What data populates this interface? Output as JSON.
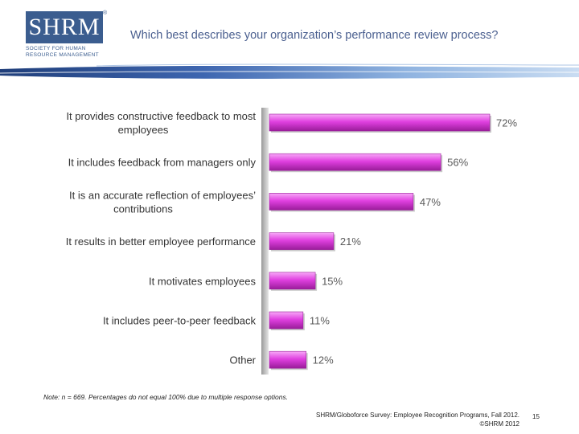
{
  "header": {
    "logo_word": "SHRM",
    "logo_registered": "®",
    "logo_sub_line1": "SOCIETY FOR HUMAN",
    "logo_sub_line2": "RESOURCE MANAGEMENT",
    "title": "Which best describes your organization’s performance review process?"
  },
  "colors": {
    "brand": "#3b5d8f",
    "bar": "#e040e0",
    "bar_dark": "#9a1c9a",
    "label": "#5a5a5a"
  },
  "chart_data": {
    "type": "bar",
    "orientation": "horizontal",
    "title": "Which best describes your organization’s performance review process?",
    "categories": [
      "It provides constructive feedback to most employees",
      "It includes feedback from managers only",
      "It is an accurate reflection of employees’ contributions",
      "It results in better employee performance",
      "It motivates employees",
      "It includes peer-to-peer feedback",
      "Other"
    ],
    "category_lines": [
      [
        "It provides constructive feedback to most",
        "employees"
      ],
      [
        "It includes feedback from managers only"
      ],
      [
        "It is an accurate reflection of employees’",
        "contributions"
      ],
      [
        "It results in better employee performance"
      ],
      [
        "It motivates employees"
      ],
      [
        "It includes peer-to-peer feedback"
      ],
      [
        "Other"
      ]
    ],
    "values": [
      72,
      56,
      47,
      21,
      15,
      11,
      12
    ],
    "value_labels": [
      "72%",
      "56%",
      "47%",
      "21%",
      "15%",
      "11%",
      "12%"
    ],
    "unit": "%",
    "xlim": [
      0,
      72
    ],
    "xlabel": "",
    "ylabel": "",
    "grid": false,
    "legend": "none"
  },
  "footer": {
    "note": "Note: n = 669. Percentages do not equal 100% due to multiple response options.",
    "source_line1": "SHRM/Globoforce Survey: Employee Recognition Programs, Fall 2012.",
    "source_line2": "©SHRM 2012",
    "page_number": "15"
  }
}
